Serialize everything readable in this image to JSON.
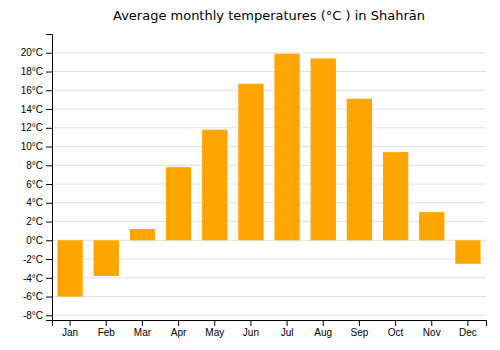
{
  "chart_data": {
    "type": "bar",
    "title": "Average monthly temperatures (°C ) in Shahrān",
    "categories": [
      "Jan",
      "Feb",
      "Mar",
      "Apr",
      "May",
      "Jun",
      "Jul",
      "Aug",
      "Sep",
      "Oct",
      "Nov",
      "Dec"
    ],
    "values": [
      -6.0,
      -3.8,
      1.2,
      7.8,
      11.8,
      16.7,
      19.9,
      19.4,
      15.1,
      9.4,
      3.0,
      -2.5
    ],
    "color": "#FFA500",
    "ylim": [
      -8.5,
      22
    ],
    "yticks": [
      {
        "value": -8,
        "label": "-8°C"
      },
      {
        "value": -6,
        "label": "-6°C"
      },
      {
        "value": -4,
        "label": "-4°C"
      },
      {
        "value": -2,
        "label": "-2°C"
      },
      {
        "value": 0,
        "label": "0°C"
      },
      {
        "value": 2,
        "label": "2°C"
      },
      {
        "value": 4,
        "label": "4°C"
      },
      {
        "value": 6,
        "label": "6°C"
      },
      {
        "value": 8,
        "label": "8°C"
      },
      {
        "value": 10,
        "label": "10°C"
      },
      {
        "value": 12,
        "label": "12°C"
      },
      {
        "value": 14,
        "label": "14°C"
      },
      {
        "value": 16,
        "label": "16°C"
      },
      {
        "value": 18,
        "label": "18°C"
      },
      {
        "value": 20,
        "label": "20°C"
      }
    ],
    "grid": true
  }
}
